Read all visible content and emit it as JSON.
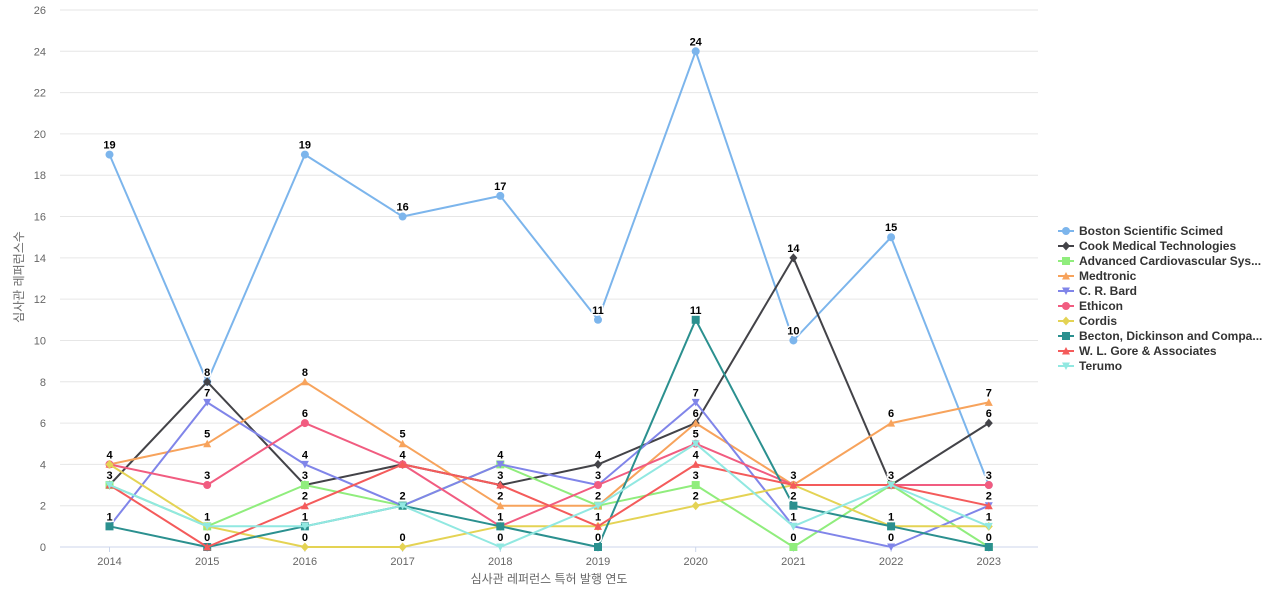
{
  "chart_data": {
    "type": "line",
    "title": "",
    "xlabel": "심사관 레퍼런스 특허 발행 연도",
    "ylabel": "심사관 레퍼런스수",
    "categories": [
      "2014",
      "2015",
      "2016",
      "2017",
      "2018",
      "2019",
      "2020",
      "2021",
      "2022",
      "2023"
    ],
    "ylim": [
      0,
      26
    ],
    "yticks": [
      "0",
      "2",
      "4",
      "6",
      "8",
      "10",
      "12",
      "14",
      "16",
      "18",
      "20",
      "22",
      "24",
      "26"
    ],
    "grid": true,
    "legend_position": "right",
    "series": [
      {
        "name": "Boston Scientific Scimed",
        "color": "#7cb5ec",
        "marker": "circle",
        "values": [
          19,
          8,
          19,
          16,
          17,
          11,
          24,
          10,
          15,
          3
        ]
      },
      {
        "name": "Cook Medical Technologies",
        "color": "#434348",
        "marker": "diamond",
        "values": [
          3,
          8,
          3,
          4,
          3,
          4,
          6,
          14,
          3,
          6
        ]
      },
      {
        "name": "Advanced Cardiovascular Sys...",
        "color": "#90ed7d",
        "marker": "square",
        "values": [
          3,
          1,
          3,
          2,
          4,
          2,
          3,
          0,
          3,
          0
        ]
      },
      {
        "name": "Medtronic",
        "color": "#f7a35c",
        "marker": "triangle",
        "values": [
          4,
          5,
          8,
          5,
          2,
          2,
          6,
          3,
          6,
          7
        ]
      },
      {
        "name": "C. R. Bard",
        "color": "#8085e9",
        "marker": "triangle-down",
        "values": [
          1,
          7,
          4,
          2,
          4,
          3,
          7,
          1,
          0,
          2
        ]
      },
      {
        "name": "Ethicon",
        "color": "#f15c80",
        "marker": "circle",
        "values": [
          4,
          3,
          6,
          4,
          1,
          3,
          5,
          3,
          3,
          3
        ]
      },
      {
        "name": "Cordis",
        "color": "#e4d354",
        "marker": "diamond",
        "values": [
          4,
          1,
          0,
          0,
          1,
          1,
          2,
          3,
          1,
          1
        ]
      },
      {
        "name": "Becton, Dickinson and Compa...",
        "color": "#2b908f",
        "marker": "square",
        "values": [
          1,
          0,
          1,
          2,
          1,
          0,
          11,
          2,
          1,
          0
        ]
      },
      {
        "name": "W. L. Gore & Associates",
        "color": "#f45b5b",
        "marker": "triangle",
        "values": [
          3,
          0,
          2,
          4,
          3,
          1,
          4,
          3,
          3,
          2
        ]
      },
      {
        "name": "Terumo",
        "color": "#91e8e1",
        "marker": "triangle-down",
        "values": [
          3,
          1,
          1,
          2,
          0,
          2,
          5,
          1,
          3,
          1
        ]
      }
    ],
    "data_labels": [
      {
        "category": "2014",
        "series": "Boston Scientific Scimed",
        "value": "19"
      },
      {
        "category": "2014",
        "series": "Medtronic",
        "value": "4"
      },
      {
        "category": "2014",
        "series": "Cook Medical Technologies",
        "value": "3"
      },
      {
        "category": "2014",
        "series": "C. R. Bard",
        "value": "1"
      },
      {
        "category": "2015",
        "series": "Cook Medical Technologies",
        "value": "8"
      },
      {
        "category": "2015",
        "series": "C. R. Bard",
        "value": "7"
      },
      {
        "category": "2015",
        "series": "Medtronic",
        "value": "5"
      },
      {
        "category": "2015",
        "series": "Ethicon",
        "value": "3"
      },
      {
        "category": "2015",
        "series": "Advanced Cardiovascular Sys...",
        "value": "1"
      },
      {
        "category": "2015",
        "series": "Becton, Dickinson and Compa...",
        "value": "0"
      },
      {
        "category": "2016",
        "series": "Boston Scientific Scimed",
        "value": "19"
      },
      {
        "category": "2016",
        "series": "Medtronic",
        "value": "8"
      },
      {
        "category": "2016",
        "series": "Ethicon",
        "value": "6"
      },
      {
        "category": "2016",
        "series": "C. R. Bard",
        "value": "4"
      },
      {
        "category": "2016",
        "series": "Cook Medical Technologies",
        "value": "3"
      },
      {
        "category": "2016",
        "series": "W. L. Gore & Associates",
        "value": "2"
      },
      {
        "category": "2016",
        "series": "Becton, Dickinson and Compa...",
        "value": "1"
      },
      {
        "category": "2016",
        "series": "Cordis",
        "value": "0"
      },
      {
        "category": "2017",
        "series": "Boston Scientific Scimed",
        "value": "16"
      },
      {
        "category": "2017",
        "series": "Medtronic",
        "value": "5"
      },
      {
        "category": "2017",
        "series": "Cook Medical Technologies",
        "value": "4"
      },
      {
        "category": "2017",
        "series": "C. R. Bard",
        "value": "2"
      },
      {
        "category": "2017",
        "series": "Cordis",
        "value": "0"
      },
      {
        "category": "2018",
        "series": "Boston Scientific Scimed",
        "value": "17"
      },
      {
        "category": "2018",
        "series": "C. R. Bard",
        "value": "4"
      },
      {
        "category": "2018",
        "series": "Cook Medical Technologies",
        "value": "3"
      },
      {
        "category": "2018",
        "series": "Medtronic",
        "value": "2"
      },
      {
        "category": "2018",
        "series": "Ethicon",
        "value": "1"
      },
      {
        "category": "2018",
        "series": "Terumo",
        "value": "0"
      },
      {
        "category": "2019",
        "series": "Boston Scientific Scimed",
        "value": "11"
      },
      {
        "category": "2019",
        "series": "Cook Medical Technologies",
        "value": "4"
      },
      {
        "category": "2019",
        "series": "Ethicon",
        "value": "3"
      },
      {
        "category": "2019",
        "series": "Advanced Cardiovascular Sys...",
        "value": "2"
      },
      {
        "category": "2019",
        "series": "W. L. Gore & Associates",
        "value": "1"
      },
      {
        "category": "2019",
        "series": "Becton, Dickinson and Compa...",
        "value": "0"
      },
      {
        "category": "2020",
        "series": "Boston Scientific Scimed",
        "value": "24"
      },
      {
        "category": "2020",
        "series": "Becton, Dickinson and Compa...",
        "value": "11"
      },
      {
        "category": "2020",
        "series": "C. R. Bard",
        "value": "7"
      },
      {
        "category": "2020",
        "series": "Medtronic",
        "value": "6"
      },
      {
        "category": "2020",
        "series": "Ethicon",
        "value": "5"
      },
      {
        "category": "2020",
        "series": "W. L. Gore & Associates",
        "value": "4"
      },
      {
        "category": "2020",
        "series": "Advanced Cardiovascular Sys...",
        "value": "3"
      },
      {
        "category": "2020",
        "series": "Cordis",
        "value": "2"
      },
      {
        "category": "2021",
        "series": "Cook Medical Technologies",
        "value": "14"
      },
      {
        "category": "2021",
        "series": "Boston Scientific Scimed",
        "value": "10"
      },
      {
        "category": "2021",
        "series": "Medtronic",
        "value": "3"
      },
      {
        "category": "2021",
        "series": "Becton, Dickinson and Compa...",
        "value": "2"
      },
      {
        "category": "2021",
        "series": "C. R. Bard",
        "value": "1"
      },
      {
        "category": "2021",
        "series": "Advanced Cardiovascular Sys...",
        "value": "0"
      },
      {
        "category": "2022",
        "series": "Boston Scientific Scimed",
        "value": "15"
      },
      {
        "category": "2022",
        "series": "Medtronic",
        "value": "6"
      },
      {
        "category": "2022",
        "series": "Cook Medical Technologies",
        "value": "3"
      },
      {
        "category": "2022",
        "series": "Cordis",
        "value": "1"
      },
      {
        "category": "2022",
        "series": "C. R. Bard",
        "value": "0"
      },
      {
        "category": "2023",
        "series": "Medtronic",
        "value": "7"
      },
      {
        "category": "2023",
        "series": "Cook Medical Technologies",
        "value": "6"
      },
      {
        "category": "2023",
        "series": "Boston Scientific Scimed",
        "value": "3"
      },
      {
        "category": "2023",
        "series": "C. R. Bard",
        "value": "2"
      },
      {
        "category": "2023",
        "series": "Terumo",
        "value": "1"
      },
      {
        "category": "2023",
        "series": "Advanced Cardiovascular Sys...",
        "value": "0"
      }
    ]
  }
}
